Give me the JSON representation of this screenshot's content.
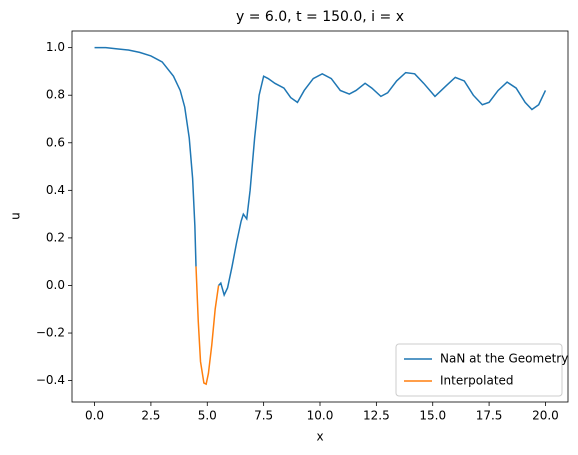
{
  "chart_data": {
    "type": "line",
    "title": "y = 6.0, t = 150.0, i = x",
    "xlabel": "x",
    "ylabel": "u",
    "xlim": [
      -1,
      21
    ],
    "ylim": [
      -0.49,
      1.07
    ],
    "xticks": [
      {
        "value": 0,
        "label": "0.0"
      },
      2.5,
      {
        "value": 5,
        "label": "5.0"
      },
      7.5,
      {
        "value": 10,
        "label": "10.0"
      },
      12.5,
      {
        "value": 15,
        "label": "15.0"
      },
      17.5,
      {
        "value": 20,
        "label": "20.0"
      }
    ],
    "yticks": [
      {
        "value": -0.4,
        "label": "−0.4"
      },
      {
        "value": -0.2,
        "label": "−0.2"
      },
      {
        "value": 0,
        "label": "0.0"
      },
      0.2,
      0.4,
      0.6,
      0.8,
      {
        "value": 1,
        "label": "1.0"
      }
    ],
    "legend": "lower right",
    "series": [
      {
        "name": "NaN at the Geometry",
        "color": "#1f77b4",
        "x": [
          0,
          0.5,
          1.0,
          1.5,
          2.0,
          2.5,
          3.0,
          3.5,
          3.8,
          4.0,
          4.2,
          4.35,
          4.45,
          4.5,
          5.0,
          5.5,
          5.6,
          5.75,
          5.9,
          6.1,
          6.3,
          6.5,
          6.6,
          6.75,
          6.9,
          7.1,
          7.3,
          7.5,
          7.7,
          8.0,
          8.4,
          8.7,
          9.0,
          9.3,
          9.7,
          10.1,
          10.5,
          10.9,
          11.3,
          11.6,
          12.0,
          12.3,
          12.7,
          13.0,
          13.4,
          13.8,
          14.2,
          14.6,
          15.1,
          15.6,
          16.0,
          16.4,
          16.8,
          17.2,
          17.5,
          17.9,
          18.3,
          18.7,
          19.1,
          19.4,
          19.7,
          20.0
        ],
        "values": [
          1.0,
          1.0,
          0.995,
          0.99,
          0.98,
          0.965,
          0.94,
          0.88,
          0.82,
          0.75,
          0.62,
          0.45,
          0.25,
          0.08,
          null,
          0.0,
          0.01,
          -0.04,
          -0.01,
          0.08,
          0.18,
          0.27,
          0.3,
          0.28,
          0.4,
          0.62,
          0.8,
          0.88,
          0.87,
          0.85,
          0.83,
          0.79,
          0.77,
          0.82,
          0.87,
          0.89,
          0.87,
          0.82,
          0.805,
          0.82,
          0.85,
          0.83,
          0.795,
          0.81,
          0.86,
          0.895,
          0.89,
          0.85,
          0.795,
          0.84,
          0.875,
          0.86,
          0.8,
          0.76,
          0.77,
          0.82,
          0.855,
          0.83,
          0.77,
          0.74,
          0.76,
          0.82
        ]
      },
      {
        "name": "Interpolated",
        "color": "#ff7f0e",
        "x": [
          4.5,
          4.6,
          4.7,
          4.85,
          4.95,
          5.05,
          5.2,
          5.35,
          5.5
        ],
        "values": [
          0.08,
          -0.15,
          -0.32,
          -0.41,
          -0.415,
          -0.37,
          -0.25,
          -0.1,
          0.0
        ]
      }
    ]
  }
}
